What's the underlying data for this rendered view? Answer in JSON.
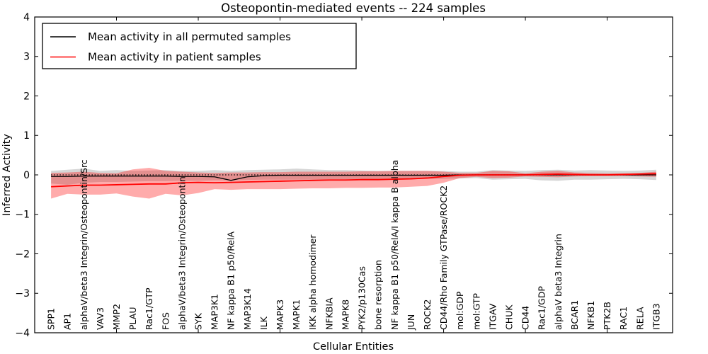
{
  "chart_data": {
    "type": "line",
    "title": "Osteopontin-mediated events -- 224 samples",
    "xlabel": "Cellular Entities",
    "ylabel": "Inferred Activity",
    "ylim": [
      -4,
      4
    ],
    "yticks": [
      4,
      3,
      2,
      1,
      0,
      -1,
      -2,
      -3,
      -4
    ],
    "ytick_labels": [
      "4",
      "3",
      "2",
      "1",
      "0",
      "−1",
      "−2",
      "−3",
      "−4"
    ],
    "x_major_tick_every": 5,
    "zero_line": true,
    "grid": false,
    "legend": {
      "position": "upper-left",
      "entries": [
        {
          "label": "Mean activity in all permuted samples",
          "color": "#000000"
        },
        {
          "label": "Mean activity in patient samples",
          "color": "#ff0000"
        }
      ]
    },
    "colors": {
      "permuted_line": "#000000",
      "permuted_band": "#808080",
      "patient_line": "#ff0000",
      "patient_band": "#ff0000",
      "axis": "#000000",
      "background": "#ffffff"
    },
    "categories": [
      "SPP1",
      "AP1",
      "alphaV/beta3 Integrin/Osteopontin/Src",
      "VAV3",
      "MMP2",
      "PLAU",
      "Rac1/GTP",
      "FOS",
      "alphaV/beta3 Integrin/Osteopontin",
      "SYK",
      "MAP3K1",
      "NF kappa B1 p50/RelA",
      "MAP3K14",
      "ILK",
      "MAPK3",
      "MAPK1",
      "IKK alpha homodimer",
      "NFKBIA",
      "MAPK8",
      "PYK2/p130Cas",
      "bone resorption",
      "NF kappa B1 p50/RelA/I kappa B alpha",
      "JUN",
      "ROCK2",
      "CD44/Rho Family GTPase/ROCK2",
      "mol:GDP",
      "mol:GTP",
      "ITGAV",
      "CHUK",
      "CD44",
      "Rac1/GDP",
      "alphaV beta3 Integrin",
      "BCAR1",
      "NFKB1",
      "PTK2B",
      "RAC1",
      "RELA",
      "ITGB3"
    ],
    "series": [
      {
        "name": "Mean activity in all permuted samples",
        "mean": [
          -0.04,
          -0.04,
          -0.03,
          -0.03,
          -0.03,
          -0.03,
          -0.03,
          -0.03,
          -0.04,
          -0.04,
          -0.05,
          -0.14,
          -0.05,
          -0.02,
          -0.01,
          -0.01,
          -0.01,
          -0.01,
          -0.01,
          -0.01,
          -0.01,
          -0.01,
          -0.01,
          -0.01,
          -0.01,
          0,
          0,
          0,
          0,
          0,
          0,
          0,
          0,
          0,
          0,
          0,
          0,
          0
        ],
        "band_lo": [
          -0.22,
          -0.25,
          -0.2,
          -0.18,
          -0.18,
          -0.17,
          -0.16,
          -0.16,
          -0.15,
          -0.15,
          -0.14,
          -0.14,
          -0.13,
          -0.12,
          -0.12,
          -0.12,
          -0.12,
          -0.11,
          -0.11,
          -0.11,
          -0.11,
          -0.1,
          -0.1,
          -0.1,
          -0.1,
          -0.09,
          -0.08,
          -0.12,
          -0.11,
          -0.1,
          -0.14,
          -0.15,
          -0.12,
          -0.12,
          -0.11,
          -0.1,
          -0.11,
          -0.13
        ],
        "band_hi": [
          0.1,
          0.13,
          0.16,
          0.1,
          0.12,
          0.1,
          0.11,
          0.12,
          0.1,
          0.1,
          0.12,
          0.1,
          0.12,
          0.13,
          0.14,
          0.16,
          0.14,
          0.12,
          0.12,
          0.11,
          0.1,
          0.1,
          0.1,
          0.1,
          0.1,
          0.08,
          0.08,
          0.12,
          0.11,
          0.1,
          0.12,
          0.13,
          0.11,
          0.12,
          0.11,
          0.1,
          0.11,
          0.13
        ]
      },
      {
        "name": "Mean activity in patient samples",
        "mean": [
          -0.3,
          -0.28,
          -0.26,
          -0.26,
          -0.25,
          -0.24,
          -0.23,
          -0.23,
          -0.2,
          -0.19,
          -0.2,
          -0.19,
          -0.18,
          -0.17,
          -0.16,
          -0.15,
          -0.14,
          -0.13,
          -0.13,
          -0.12,
          -0.12,
          -0.11,
          -0.1,
          -0.08,
          -0.04,
          -0.01,
          0,
          0,
          0,
          0,
          0.01,
          0.02,
          0.01,
          0,
          0,
          0.01,
          0.02,
          0.03
        ],
        "band_lo": [
          -0.6,
          -0.48,
          -0.5,
          -0.5,
          -0.47,
          -0.55,
          -0.6,
          -0.48,
          -0.52,
          -0.46,
          -0.36,
          -0.38,
          -0.36,
          -0.36,
          -0.36,
          -0.35,
          -0.34,
          -0.34,
          -0.33,
          -0.33,
          -0.32,
          -0.32,
          -0.3,
          -0.28,
          -0.2,
          -0.08,
          -0.05,
          -0.08,
          -0.07,
          -0.04,
          -0.05,
          -0.06,
          -0.04,
          -0.03,
          -0.03,
          -0.03,
          -0.04,
          -0.05
        ],
        "band_hi": [
          0.05,
          0.06,
          0.08,
          0.05,
          0.04,
          0.14,
          0.18,
          0.1,
          0.08,
          0.06,
          0.05,
          0.06,
          0.06,
          0.07,
          0.07,
          0.08,
          0.08,
          0.08,
          0.08,
          0.09,
          0.09,
          0.1,
          0.1,
          0.1,
          0.08,
          0.05,
          0.05,
          0.1,
          0.09,
          0.04,
          0.08,
          0.1,
          0.06,
          0.05,
          0.04,
          0.04,
          0.05,
          0.08
        ]
      }
    ]
  }
}
